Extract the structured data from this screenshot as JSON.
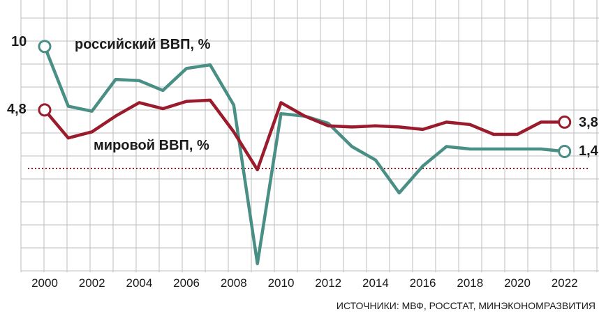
{
  "chart_data": {
    "type": "line",
    "x": [
      2000,
      2001,
      2002,
      2003,
      2004,
      2005,
      2006,
      2007,
      2008,
      2009,
      2010,
      2011,
      2012,
      2013,
      2014,
      2015,
      2016,
      2017,
      2018,
      2019,
      2020,
      2021,
      2022
    ],
    "x_tick_labels": [
      "2000",
      "2002",
      "2004",
      "2006",
      "2008",
      "2010",
      "2012",
      "2014",
      "2016",
      "2018",
      "2020",
      "2022"
    ],
    "series": [
      {
        "name": "российский ВВП, %",
        "color": "#4a8f85",
        "values": [
          10.0,
          5.1,
          4.7,
          7.3,
          7.2,
          6.4,
          8.2,
          8.5,
          5.2,
          -7.8,
          4.5,
          4.3,
          3.7,
          1.8,
          0.7,
          -2.0,
          0.2,
          1.8,
          1.6,
          1.6,
          1.6,
          1.6,
          1.4
        ]
      },
      {
        "name": "мировой ВВП, %",
        "color": "#9a1c2c",
        "values": [
          4.8,
          2.5,
          3.0,
          4.3,
          5.4,
          4.9,
          5.5,
          5.6,
          3.0,
          -0.1,
          5.4,
          4.3,
          3.5,
          3.4,
          3.5,
          3.4,
          3.2,
          3.8,
          3.6,
          2.8,
          2.8,
          3.8,
          3.8
        ]
      }
    ],
    "value_labels": {
      "russia_start": "10",
      "world_start": "4,8",
      "world_end": "3,8",
      "russia_end": "1,4"
    },
    "ylim": [
      -8.5,
      10.5
    ],
    "grid": true,
    "source": "ИСТОЧНИКИ: МВФ, РОССТАТ, МИНЭКОНОМРАЗВИТИЯ"
  }
}
